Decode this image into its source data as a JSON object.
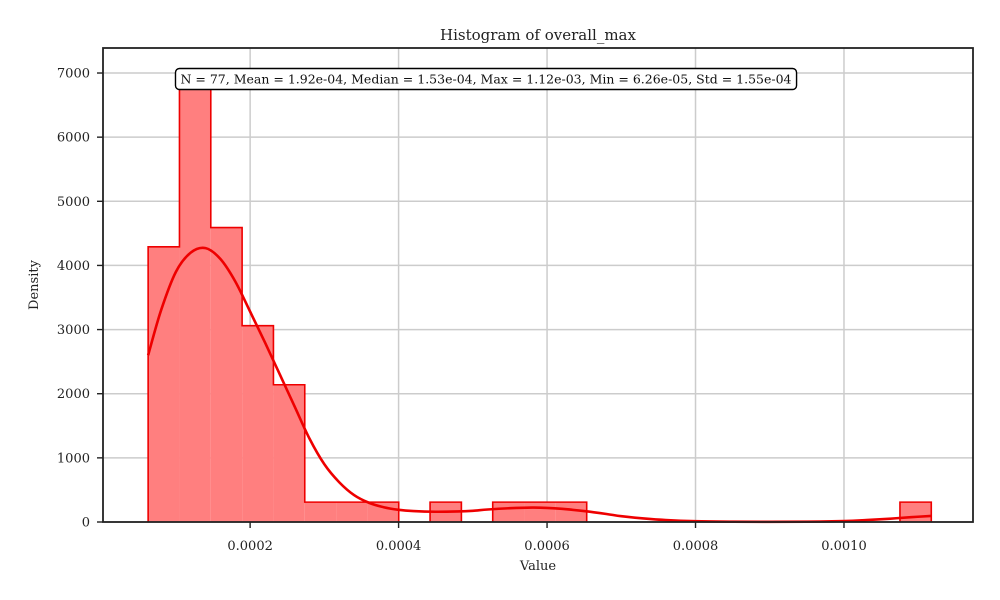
{
  "chart_data": {
    "type": "bar",
    "title": "Histogram of overall_max",
    "xlabel": "Value",
    "ylabel": "Density",
    "xlim": [
      1.8e-06,
      0.0011738
    ],
    "ylim": [
      0,
      7390
    ],
    "xticks": [
      0.0002,
      0.0004,
      0.0006,
      0.0008,
      0.001
    ],
    "xtick_labels": [
      "0.0002",
      "0.0004",
      "0.0006",
      "0.0008",
      "0.0010"
    ],
    "yticks": [
      0,
      1000,
      2000,
      3000,
      4000,
      5000,
      6000,
      7000
    ],
    "ytick_labels": [
      "0",
      "1000",
      "2000",
      "3000",
      "4000",
      "5000",
      "6000",
      "7000"
    ],
    "grid": true,
    "bin_edges": [
      6.26e-05,
      0.0001048,
      0.000147,
      0.0001892,
      0.0002314,
      0.0002736,
      0.0003158,
      0.000358,
      0.0004002,
      0.0004424,
      0.0004846,
      0.0005268,
      0.000569,
      0.0006112,
      0.0006534,
      0.0006956,
      0.0007378,
      0.00078,
      0.0008222,
      0.0008644,
      0.0009066,
      0.0009488,
      0.000991,
      0.0010332,
      0.0010754,
      0.0011176
    ],
    "densities": [
      4290,
      6780,
      4590,
      3060,
      2140,
      310,
      310,
      310,
      0,
      310,
      0,
      310,
      310,
      310,
      0,
      0,
      0,
      0,
      0,
      0,
      0,
      0,
      0,
      0,
      310
    ],
    "kde": {
      "x": [
        6.26e-05,
        8e-05,
        0.0001,
        0.00012,
        0.00014,
        0.00016,
        0.00018,
        0.0002,
        0.00022,
        0.00024,
        0.00026,
        0.00028,
        0.0003,
        0.00032,
        0.00034,
        0.00036,
        0.00038,
        0.0004,
        0.00042,
        0.00045,
        0.00048,
        0.0005,
        0.00052,
        0.00055,
        0.00058,
        0.0006,
        0.00062,
        0.00065,
        0.00068,
        0.0007,
        0.00073,
        0.00076,
        0.0008,
        0.00085,
        0.0009,
        0.00095,
        0.001,
        0.00103,
        0.00106,
        0.00109,
        0.0011176
      ],
      "y": [
        2600,
        3300,
        3900,
        4200,
        4270,
        4100,
        3750,
        3280,
        2800,
        2300,
        1800,
        1300,
        900,
        620,
        420,
        300,
        230,
        190,
        170,
        160,
        165,
        175,
        195,
        215,
        225,
        220,
        205,
        170,
        125,
        90,
        55,
        30,
        12,
        5,
        3,
        5,
        15,
        30,
        50,
        75,
        95
      ]
    },
    "stats_text": "N = 77, Mean = 1.92e-04, Median = 1.53e-04, Max = 1.12e-03, Min = 6.26e-05, Std = 1.55e-04",
    "colors": {
      "bar_fill": "#ff7f7f",
      "bar_edge": "#ee0000",
      "kde_line": "#ee0000",
      "grid": "#cccccc",
      "axes": "#222222"
    }
  }
}
